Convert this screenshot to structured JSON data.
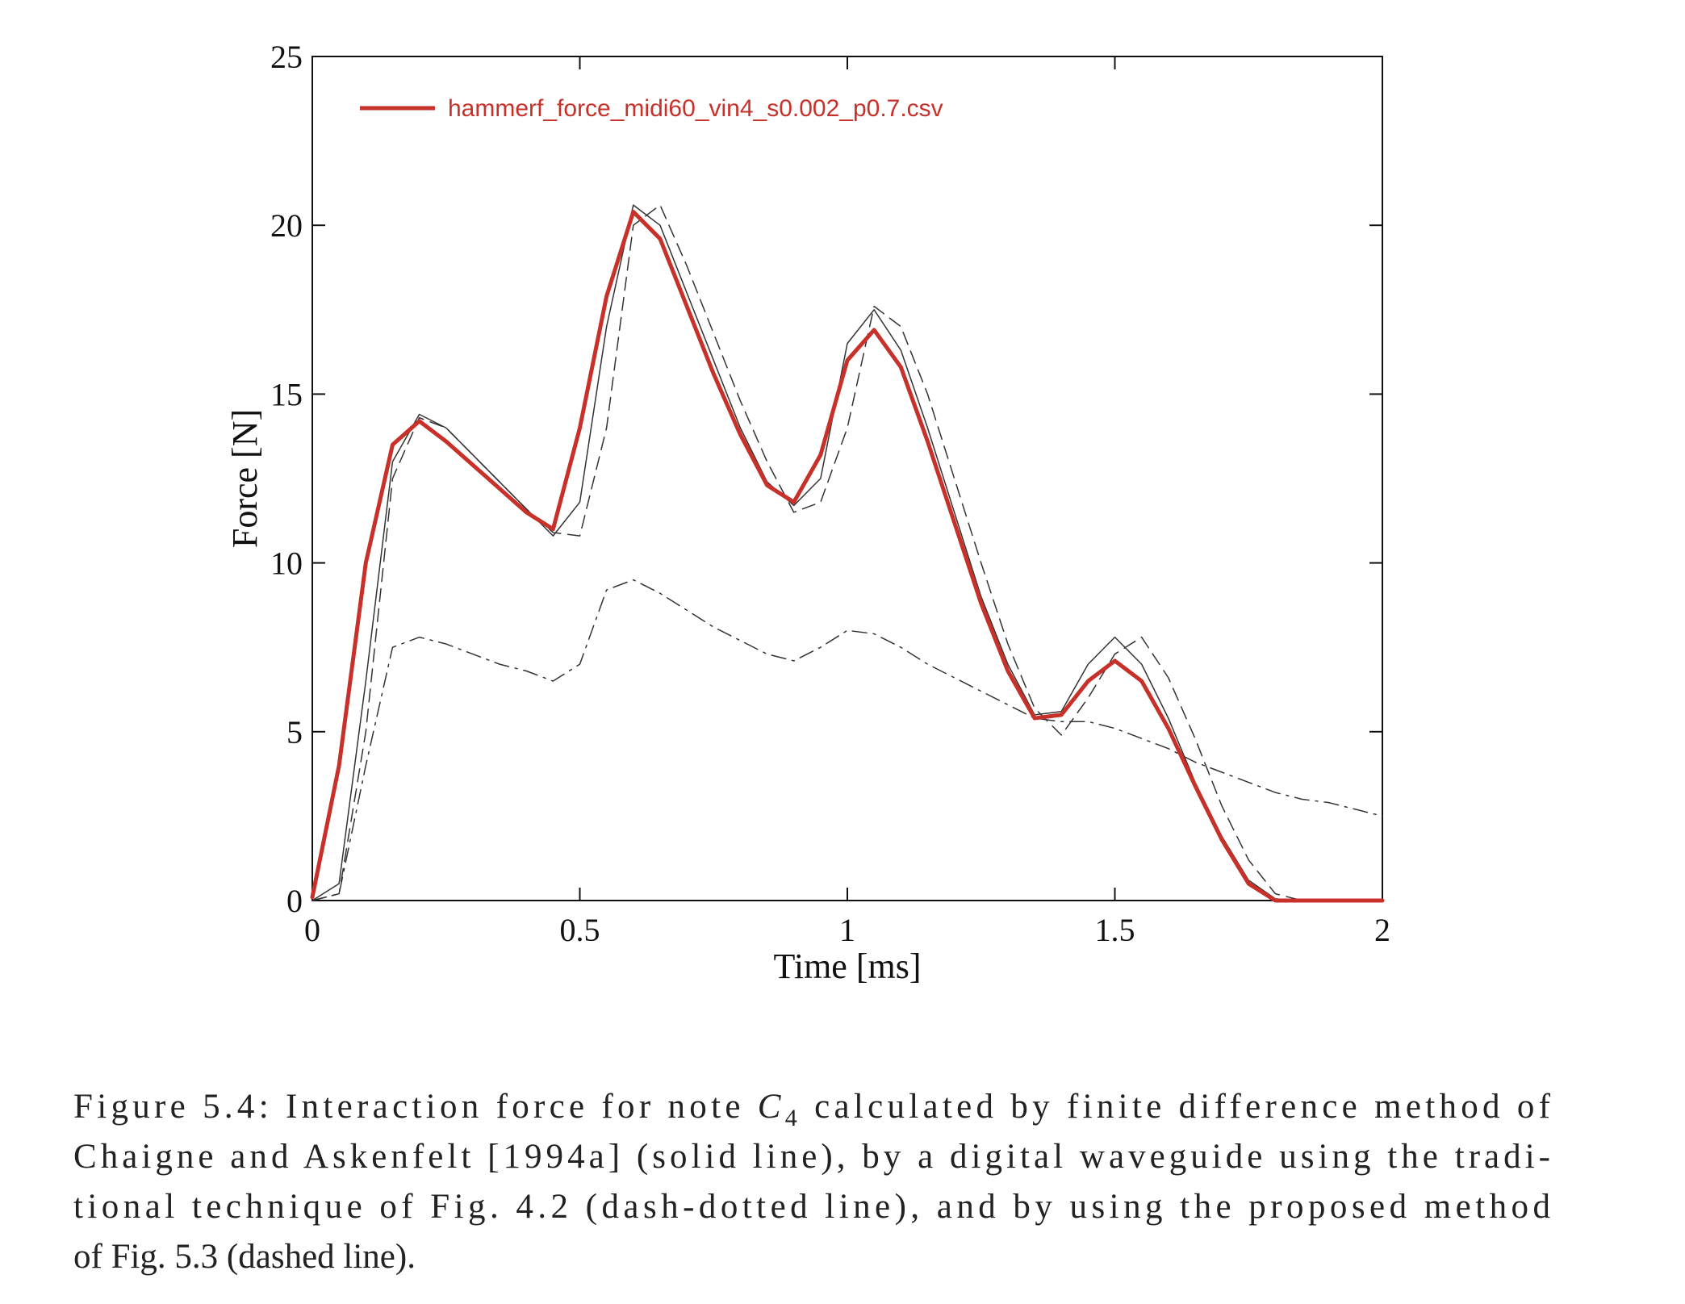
{
  "chart_data": {
    "type": "line",
    "xlabel": "Time [ms]",
    "ylabel": "Force [N]",
    "xlim": [
      0,
      2
    ],
    "ylim": [
      0,
      25
    ],
    "xticks": [
      0,
      0.5,
      1,
      1.5,
      2
    ],
    "yticks": [
      0,
      5,
      10,
      15,
      20,
      25
    ],
    "grid": false,
    "legend": "upper left",
    "x": [
      0,
      0.05,
      0.1,
      0.15,
      0.2,
      0.25,
      0.3,
      0.35,
      0.4,
      0.45,
      0.5,
      0.55,
      0.6,
      0.65,
      0.7,
      0.75,
      0.8,
      0.85,
      0.9,
      0.95,
      1.0,
      1.05,
      1.1,
      1.15,
      1.2,
      1.25,
      1.3,
      1.35,
      1.4,
      1.45,
      1.5,
      1.55,
      1.6,
      1.65,
      1.7,
      1.75,
      1.8,
      1.85,
      1.9,
      1.95,
      2.0
    ],
    "series": [
      {
        "color": "#333333",
        "style": "solid",
        "width": 1.5,
        "values": [
          0,
          0.5,
          6.5,
          13,
          14.4,
          14,
          13.2,
          12.4,
          11.6,
          10.8,
          11.8,
          17,
          20.6,
          20,
          18,
          16,
          14,
          12.4,
          11.7,
          12.5,
          16.5,
          17.5,
          16.3,
          14,
          11.5,
          9,
          7,
          5.5,
          5.6,
          7,
          7.8,
          7,
          5.4,
          3.5,
          1.9,
          0.6,
          0.05,
          0,
          0,
          0,
          0
        ]
      },
      {
        "color": "#333333",
        "style": "dashed",
        "width": 1.5,
        "values": [
          0,
          0.2,
          5,
          12.5,
          14.3,
          14,
          13.2,
          12.4,
          11.6,
          10.9,
          10.8,
          14,
          20,
          20.6,
          18.8,
          16.8,
          14.8,
          13,
          11.5,
          11.8,
          14,
          17.6,
          17,
          15,
          12.5,
          10,
          7.6,
          5.7,
          4.9,
          6,
          7.3,
          7.8,
          6.6,
          4.8,
          2.8,
          1.2,
          0.2,
          0,
          0,
          0,
          0
        ]
      },
      {
        "color": "#333333",
        "style": "dashdot",
        "width": 1.5,
        "values": [
          0,
          0.2,
          4,
          7.5,
          7.8,
          7.6,
          7.3,
          7.0,
          6.8,
          6.5,
          7,
          9.2,
          9.5,
          9.1,
          8.6,
          8.1,
          7.7,
          7.3,
          7.1,
          7.5,
          8,
          7.9,
          7.5,
          7,
          6.6,
          6.2,
          5.8,
          5.4,
          5.3,
          5.3,
          5.1,
          4.8,
          4.5,
          4.1,
          3.8,
          3.5,
          3.2,
          3.0,
          2.9,
          2.7,
          2.5
        ]
      },
      {
        "name": "hammerf_force_midi60_vin4_s0.002_p0.7.csv",
        "color": "#c8302a",
        "style": "solid",
        "width": 5,
        "values": [
          0.1,
          4,
          10,
          13.5,
          14.2,
          13.6,
          12.9,
          12.2,
          11.5,
          11,
          14,
          17.9,
          20.4,
          19.6,
          17.6,
          15.6,
          13.8,
          12.3,
          11.8,
          13.2,
          16,
          16.9,
          15.8,
          13.6,
          11.2,
          8.8,
          6.8,
          5.4,
          5.5,
          6.5,
          7.1,
          6.5,
          5.1,
          3.4,
          1.8,
          0.5,
          0,
          0,
          0,
          0,
          0
        ]
      }
    ]
  },
  "caption": {
    "first": {
      "before": "Figure 5.4: Interaction force for note ",
      "symbol": "C",
      "subscript": "4",
      "after": " calculated by finite difference method of"
    },
    "rest": [
      "Chaigne and Askenfelt [1994a] (solid line), by a digital waveguide using the tradi-",
      "tional technique of Fig. 4.2 (dash-dotted line), and by using the proposed method",
      "of Fig. 5.3 (dashed line)."
    ]
  }
}
